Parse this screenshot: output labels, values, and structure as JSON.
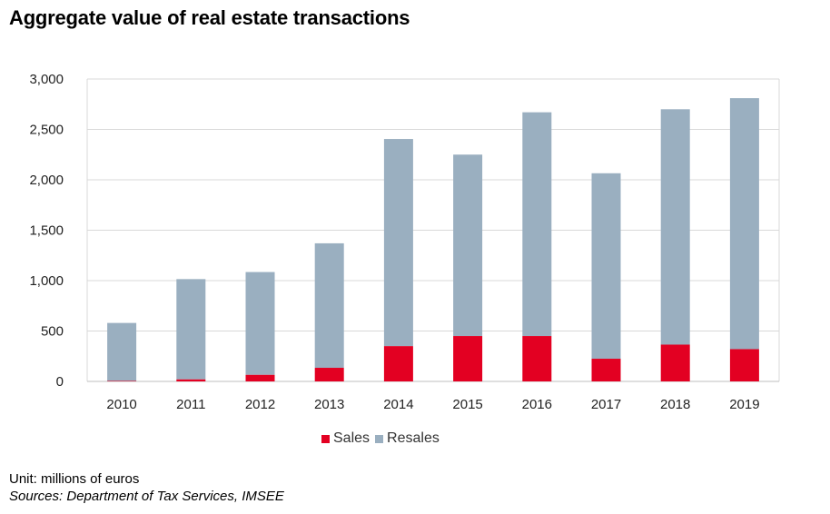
{
  "title": "Aggregate value of real estate transactions",
  "unit_note": "Unit: millions of euros",
  "sources_note": "Sources: Department of Tax Services, IMSEE",
  "colors": {
    "sales": "#E30022",
    "resales": "#9AAFC0",
    "grid": "#D9D9D9"
  },
  "chart_data": {
    "type": "bar",
    "stacked": true,
    "categories": [
      "2010",
      "2011",
      "2012",
      "2013",
      "2014",
      "2015",
      "2016",
      "2017",
      "2018",
      "2019"
    ],
    "series": [
      {
        "name": "Sales",
        "values": [
          5,
          20,
          65,
          135,
          350,
          450,
          450,
          225,
          365,
          320
        ]
      },
      {
        "name": "Resales",
        "values": [
          575,
          995,
          1020,
          1235,
          2055,
          1800,
          2220,
          1840,
          2335,
          2490
        ]
      }
    ],
    "ylim": [
      0,
      3000
    ],
    "yticks": [
      "0",
      "500",
      "1,000",
      "1,500",
      "2,000",
      "2,500",
      "3,000"
    ],
    "ytick_values": [
      0,
      500,
      1000,
      1500,
      2000,
      2500,
      3000
    ],
    "grid": true,
    "legend": "bottom"
  }
}
